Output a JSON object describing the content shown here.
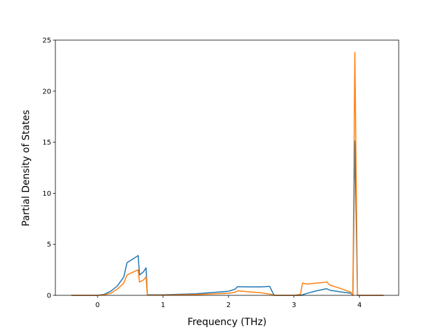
{
  "chart_data": {
    "type": "line",
    "xlabel": "Frequency (THz)",
    "ylabel": "Partial Density of States",
    "x": [
      -0.4,
      0,
      0.1,
      0.2,
      0.3,
      0.4,
      0.45,
      0.55,
      0.62,
      0.64,
      0.7,
      0.74,
      0.76,
      1.0,
      1.5,
      2.0,
      2.1,
      2.14,
      2.3,
      2.5,
      2.63,
      2.68,
      2.7,
      3.0,
      3.1,
      3.13,
      3.2,
      3.35,
      3.5,
      3.55,
      3.7,
      3.87,
      3.9,
      3.93,
      3.97,
      4.37
    ],
    "series": [
      {
        "color": "#1f77b4",
        "values": [
          0,
          0,
          0.1,
          0.4,
          0.9,
          1.8,
          3.2,
          3.6,
          3.9,
          2.0,
          2.3,
          2.7,
          0.05,
          0.05,
          0.15,
          0.4,
          0.6,
          0.85,
          0.83,
          0.83,
          0.87,
          0.2,
          0,
          0,
          0,
          0.05,
          0.2,
          0.45,
          0.65,
          0.5,
          0.35,
          0.2,
          0,
          15.1,
          0,
          0
        ]
      },
      {
        "color": "#ff7f0e",
        "values": [
          0,
          0,
          0.05,
          0.2,
          0.6,
          1.2,
          2.0,
          2.3,
          2.5,
          1.3,
          1.5,
          1.8,
          0.02,
          0.02,
          0.08,
          0.2,
          0.3,
          0.45,
          0.35,
          0.25,
          0.12,
          0.05,
          0,
          0,
          0.1,
          1.2,
          1.1,
          1.2,
          1.3,
          1.0,
          0.7,
          0.3,
          0,
          23.8,
          0,
          0
        ]
      }
    ],
    "xlim": [
      -0.645,
      4.6
    ],
    "ylim": [
      0,
      25
    ],
    "xticks": [
      0,
      1,
      2,
      3,
      4
    ],
    "yticks": [
      0,
      5,
      10,
      15,
      20,
      25
    ]
  }
}
